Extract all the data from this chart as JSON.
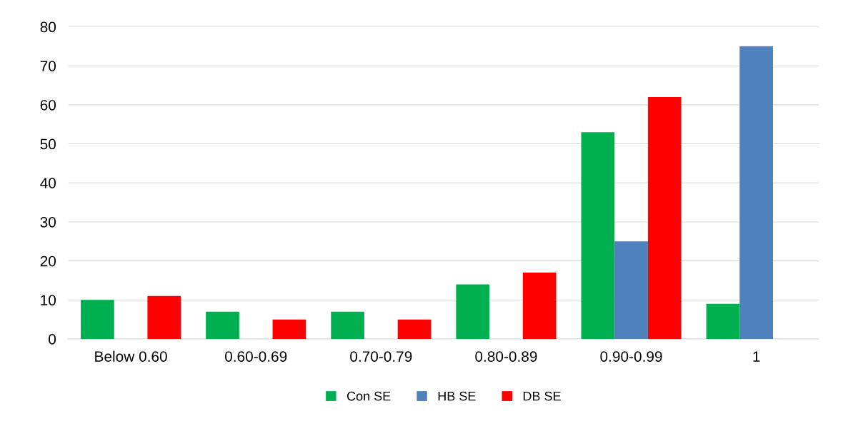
{
  "chart_data": {
    "type": "bar",
    "categories": [
      "Below 0.60",
      "0.60-0.69",
      "0.70-0.79",
      "0.80-0.89",
      "0.90-0.99",
      "1"
    ],
    "series": [
      {
        "name": "Con SE",
        "color": "#00b050",
        "values": [
          10,
          7,
          7,
          14,
          53,
          9
        ]
      },
      {
        "name": "HB SE",
        "color": "#4f81bd",
        "values": [
          0,
          0,
          0,
          0,
          25,
          75
        ]
      },
      {
        "name": "DB SE",
        "color": "#ff0000",
        "values": [
          11,
          5,
          5,
          17,
          62,
          0
        ]
      }
    ],
    "ylim": [
      0,
      80
    ],
    "yticks": [
      0,
      10,
      20,
      30,
      40,
      50,
      60,
      70,
      80
    ],
    "grid": "y",
    "legend": "bottom"
  }
}
